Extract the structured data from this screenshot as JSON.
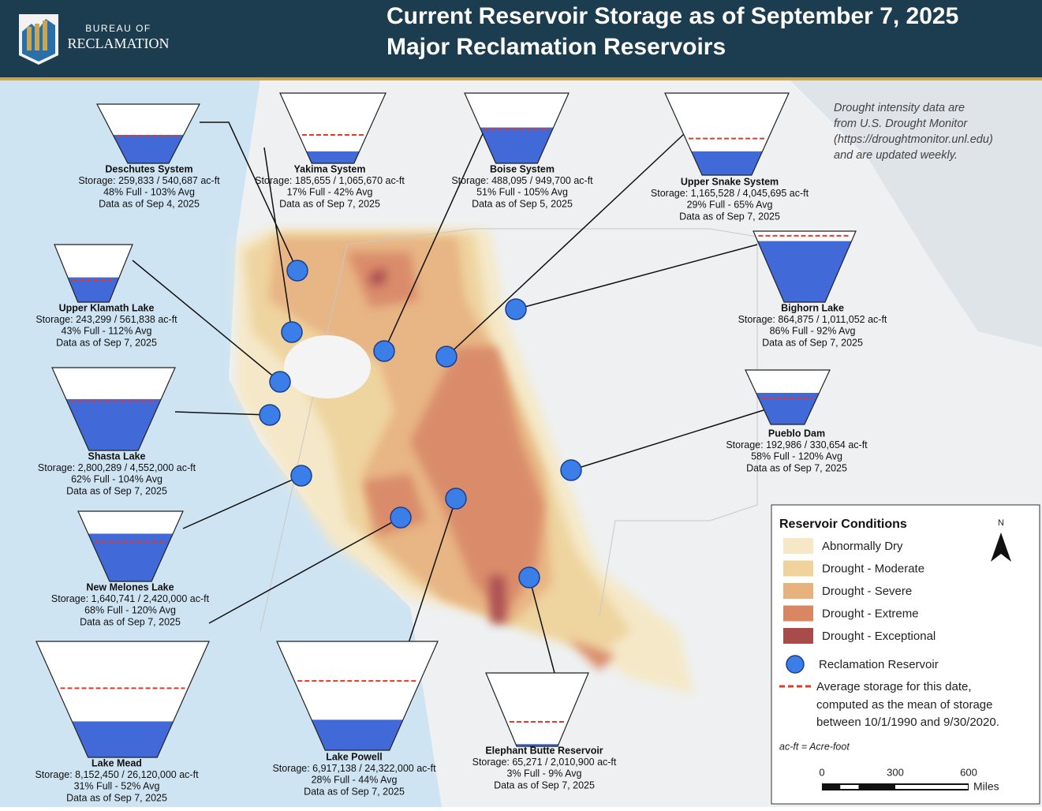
{
  "header": {
    "agency_top": "BUREAU OF",
    "agency_bottom": "RECLAMATION",
    "title_line1": "Current Reservoir Storage as of September 7, 2025",
    "title_line2": "Major Reclamation Reservoirs"
  },
  "note": [
    "Drought intensity data are",
    "from U.S. Drought Monitor",
    "(https://droughtmonitor.unl.edu)",
    "and are updated weekly."
  ],
  "reservoirs": [
    {
      "name": "Deschutes System",
      "storage": "Storage: 259,833 / 540,687 ac-ft",
      "full": 48,
      "avg": 103,
      "full_avg_label": "48% Full - 103% Avg",
      "date": "Data as of Sep 4, 2025"
    },
    {
      "name": "Yakima System",
      "storage": "Storage: 185,655 / 1,065,670 ac-ft",
      "full": 17,
      "avg": 42,
      "full_avg_label": "17% Full - 42% Avg",
      "date": "Data as of Sep 7, 2025"
    },
    {
      "name": "Boise System",
      "storage": "Storage: 488,095 / 949,700 ac-ft",
      "full": 51,
      "avg": 105,
      "full_avg_label": "51% Full - 105% Avg",
      "date": "Data as of Sep 5, 2025"
    },
    {
      "name": "Upper Snake System",
      "storage": "Storage: 1,165,528 / 4,045,695 ac-ft",
      "full": 29,
      "avg": 65,
      "full_avg_label": "29% Full - 65% Avg",
      "date": "Data as of Sep 7, 2025"
    },
    {
      "name": "Upper Klamath Lake",
      "storage": "Storage: 243,299 / 561,838 ac-ft",
      "full": 43,
      "avg": 112,
      "full_avg_label": "43% Full - 112% Avg",
      "date": "Data as of Sep 7, 2025"
    },
    {
      "name": "Bighorn Lake",
      "storage": "Storage: 864,875 / 1,011,052 ac-ft",
      "full": 86,
      "avg": 92,
      "full_avg_label": "86% Full - 92% Avg",
      "date": "Data as of Sep 7, 2025"
    },
    {
      "name": "Shasta Lake",
      "storage": "Storage: 2,800,289 / 4,552,000 ac-ft",
      "full": 62,
      "avg": 104,
      "full_avg_label": "62% Full - 104% Avg",
      "date": "Data as of Sep 7, 2025"
    },
    {
      "name": "Pueblo Dam",
      "storage": "Storage: 192,986 / 330,654 ac-ft",
      "full": 58,
      "avg": 120,
      "full_avg_label": "58% Full - 120% Avg",
      "date": "Data as of Sep 7, 2025"
    },
    {
      "name": "New Melones Lake",
      "storage": "Storage: 1,640,741 / 2,420,000 ac-ft",
      "full": 68,
      "avg": 120,
      "full_avg_label": "68% Full - 120% Avg",
      "date": "Data as of Sep 7, 2025"
    },
    {
      "name": "Lake Mead",
      "storage": "Storage: 8,152,450 / 26,120,000 ac-ft",
      "full": 31,
      "avg": 52,
      "full_avg_label": "31% Full - 52% Avg",
      "date": "Data as of Sep 7, 2025"
    },
    {
      "name": "Lake Powell",
      "storage": "Storage: 6,917,138 / 24,322,000 ac-ft",
      "full": 28,
      "avg": 44,
      "full_avg_label": "28% Full - 44% Avg",
      "date": "Data as of Sep 7, 2025"
    },
    {
      "name": "Elephant Butte Reservoir",
      "storage": "Storage: 65,271 / 2,010,900 ac-ft",
      "full": 3,
      "avg": 9,
      "full_avg_label": "3% Full - 9% Avg",
      "date": "Data as of Sep 7, 2025"
    }
  ],
  "legend": {
    "title": "Reservoir Conditions",
    "classes": [
      {
        "label": "Abnormally Dry",
        "color": "#f6e8c6"
      },
      {
        "label": "Drought - Moderate",
        "color": "#efd39b"
      },
      {
        "label": "Drought - Severe",
        "color": "#e8b27f"
      },
      {
        "label": "Drought - Extreme",
        "color": "#d98763"
      },
      {
        "label": "Drought - Exceptional",
        "color": "#a94a4b"
      }
    ],
    "reservoir_label": "Reclamation Reservoir",
    "average_lines": [
      "Average storage for this date,",
      "computed as the mean of storage",
      "between 10/1/1990 and 9/30/2020."
    ],
    "abbrev": "ac-ft = Acre-foot",
    "north": "N",
    "scale_ticks": [
      0,
      300,
      600
    ],
    "scale_unit": "Miles"
  }
}
